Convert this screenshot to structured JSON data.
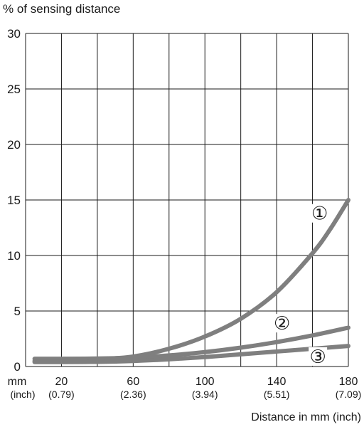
{
  "chart_data": {
    "type": "line",
    "ylabel": "% of sensing distance",
    "xlabel": "Distance in mm (inch)",
    "x_unit_label": "mm",
    "x_unit_sublabel": "(inch)",
    "xlim": [
      0,
      180
    ],
    "ylim": [
      0,
      30
    ],
    "x_ticks": [
      {
        "value": 20,
        "label": "20",
        "sublabel": "(0.79)"
      },
      {
        "value": 60,
        "label": "60",
        "sublabel": "(2.36)"
      },
      {
        "value": 100,
        "label": "100",
        "sublabel": "(3.94)"
      },
      {
        "value": 140,
        "label": "140",
        "sublabel": "(5.51)"
      },
      {
        "value": 180,
        "label": "180",
        "sublabel": "(7.09)"
      }
    ],
    "x_gridlines": [
      0,
      20,
      40,
      60,
      80,
      100,
      120,
      140,
      160,
      180
    ],
    "y_ticks": [
      0,
      5,
      10,
      15,
      20,
      25,
      30
    ],
    "y_gridlines": [
      0,
      5,
      10,
      15,
      20,
      25,
      30
    ],
    "grid": true,
    "series_color": "#7f7f7f",
    "series": [
      {
        "name": "①",
        "x": [
          5,
          20,
          40,
          60,
          80,
          100,
          120,
          140,
          160,
          170,
          180
        ],
        "y": [
          0.5,
          0.55,
          0.65,
          0.9,
          1.6,
          2.7,
          4.3,
          6.7,
          10.2,
          12.4,
          15
        ]
      },
      {
        "name": "②",
        "x": [
          5,
          20,
          40,
          60,
          80,
          100,
          120,
          140,
          160,
          180
        ],
        "y": [
          0.7,
          0.7,
          0.72,
          0.8,
          1.0,
          1.3,
          1.7,
          2.2,
          2.8,
          3.5
        ]
      },
      {
        "name": "③",
        "x": [
          5,
          20,
          40,
          60,
          80,
          100,
          120,
          140,
          160,
          180
        ],
        "y": [
          0.4,
          0.4,
          0.42,
          0.5,
          0.65,
          0.85,
          1.1,
          1.35,
          1.6,
          1.85
        ]
      }
    ],
    "series_labels": [
      {
        "text": "①",
        "x": 164,
        "y": 13.8
      },
      {
        "text": "②",
        "x": 143,
        "y": 3.9
      },
      {
        "text": "③",
        "x": 163,
        "y": 0.9
      }
    ]
  }
}
